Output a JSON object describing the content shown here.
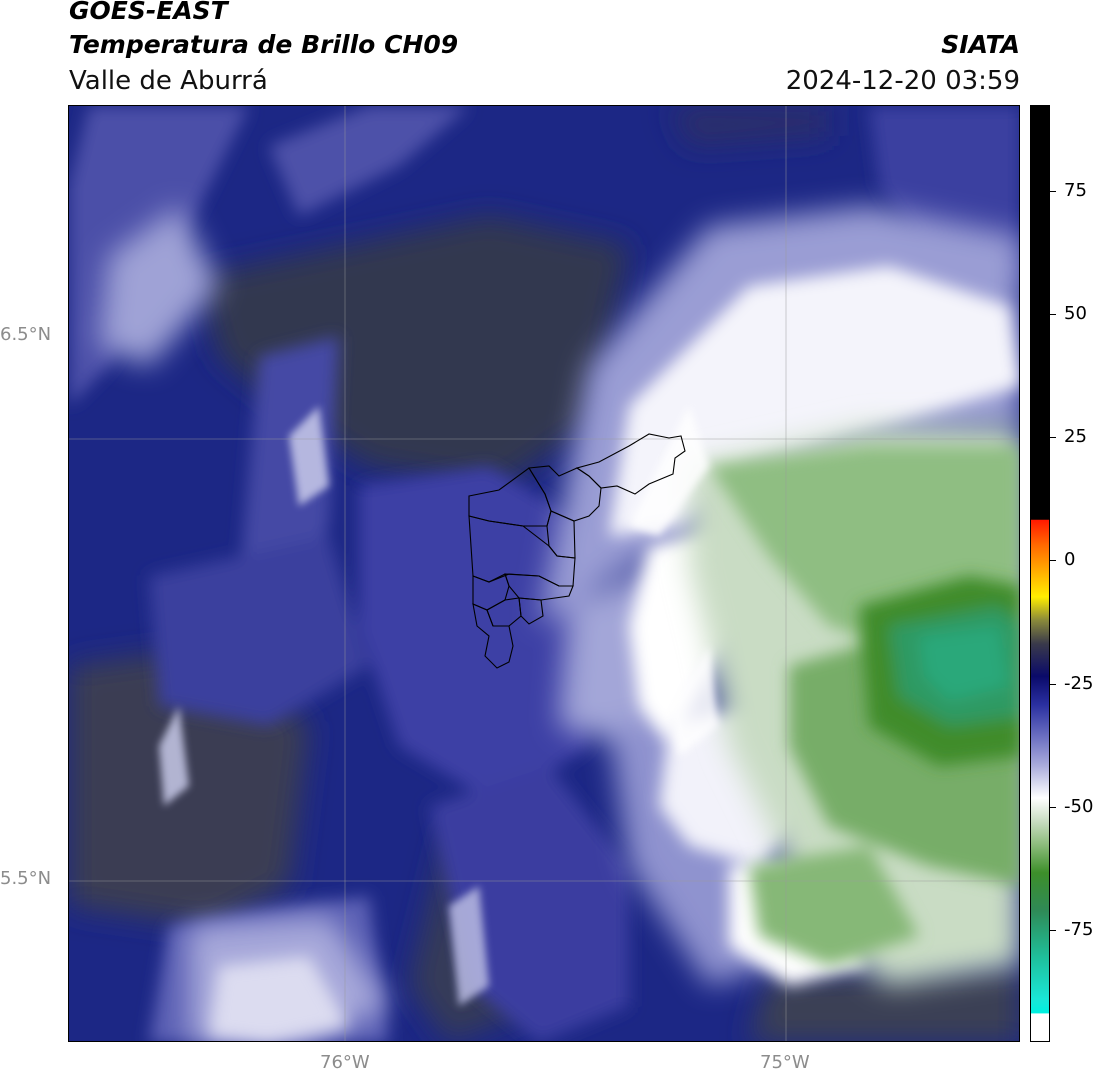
{
  "header": {
    "satellite": "GOES-EAST",
    "product": "Temperatura de Brillo CH09",
    "region": "Valle de Aburrá",
    "organization": "SIATA",
    "timestamp": "2024-12-20 03:59"
  },
  "map": {
    "lat_labels": [
      "6.5°N",
      "5.5°N"
    ],
    "lon_labels": [
      "76°W",
      "75°W"
    ]
  },
  "colorbar": {
    "ticks": [
      "75",
      "50",
      "25",
      "0",
      "-25",
      "-50",
      "-75"
    ]
  },
  "colors": {
    "cold_cloud_green": "#3d8f2a",
    "deep_blue": "#0a0a6a",
    "mid_blue": "#2a2fa0",
    "warm_black": "#000000",
    "white_band": "#ffffff",
    "cyan_extreme": "#00f0e0"
  }
}
